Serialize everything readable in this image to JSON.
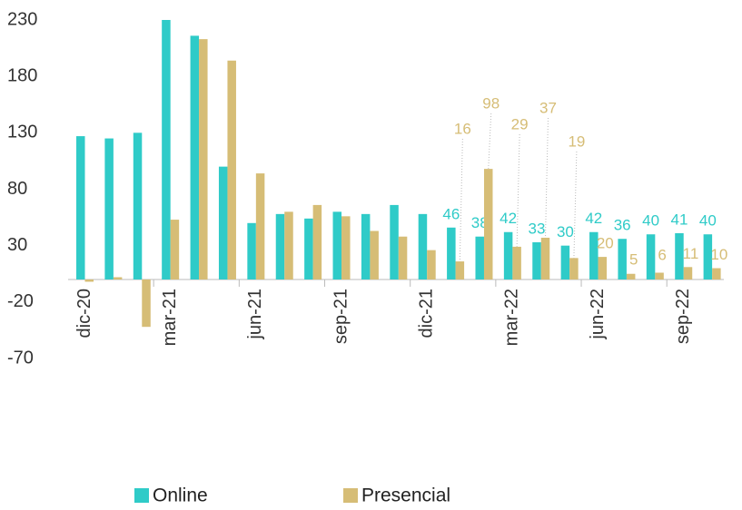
{
  "chart_data": {
    "type": "bar",
    "categories": [
      "dic-20",
      null,
      null,
      "mar-21",
      null,
      null,
      "jun-21",
      null,
      null,
      "sep-21",
      null,
      null,
      "dic-21",
      null,
      null,
      "mar-22",
      null,
      null,
      "jun-22",
      null,
      null,
      "sep-22",
      null
    ],
    "series": [
      {
        "name": "Online",
        "color": "#2fcbc8",
        "values": [
          127,
          125,
          130,
          230,
          216,
          100,
          50,
          58,
          54,
          60,
          58,
          66,
          58,
          46,
          38,
          42,
          33,
          30,
          42,
          36,
          40,
          41,
          40
        ],
        "value_labels": [
          null,
          null,
          null,
          null,
          null,
          null,
          null,
          null,
          null,
          null,
          null,
          null,
          null,
          "46",
          "38",
          "42",
          "33",
          "30",
          "42",
          "36",
          "40",
          "41",
          "40"
        ]
      },
      {
        "name": "Presencial",
        "color": "#d6bd76",
        "values": [
          -2,
          2,
          -42,
          53,
          213,
          194,
          94,
          60,
          66,
          56,
          43,
          38,
          26,
          16,
          98,
          29,
          37,
          19,
          20,
          5,
          6,
          11,
          10
        ],
        "value_labels": [
          null,
          null,
          null,
          null,
          null,
          null,
          null,
          null,
          null,
          null,
          null,
          null,
          null,
          "16",
          "98",
          "29",
          "37",
          "19",
          "20",
          "5",
          "6",
          "11",
          "10"
        ]
      }
    ],
    "ylim": [
      -70,
      230
    ],
    "yticks": [
      -70,
      -20,
      30,
      80,
      130,
      180,
      230
    ],
    "grid": false,
    "legend": "bottom"
  }
}
